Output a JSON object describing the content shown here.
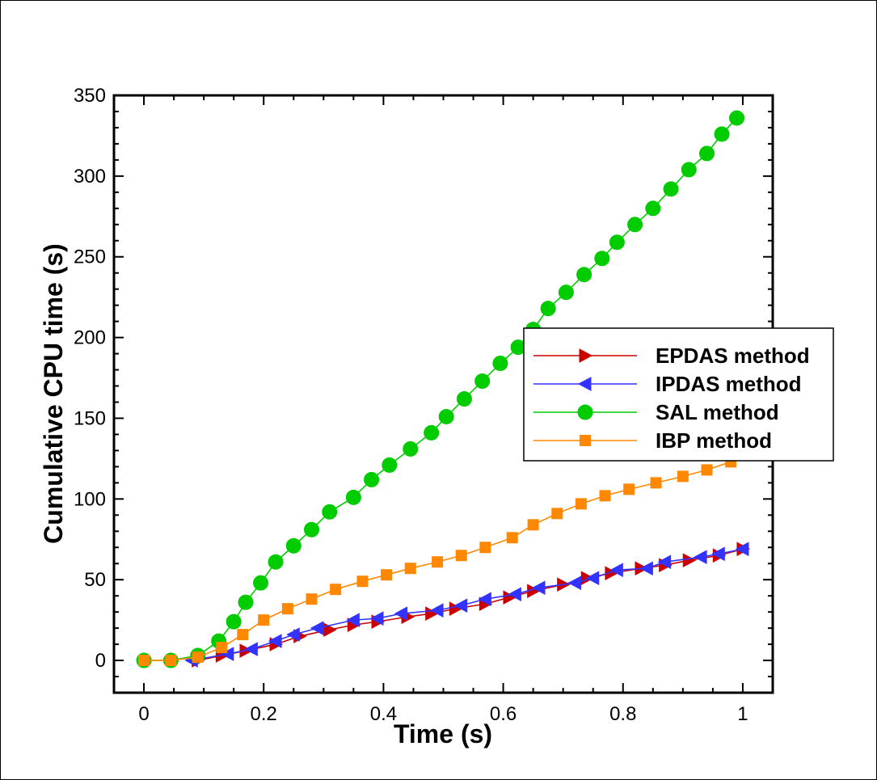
{
  "chart_data": {
    "type": "line",
    "title": "",
    "xlabel": "Time (s)",
    "ylabel": "Cumulative CPU time (s)",
    "xlim": [
      -0.05,
      1.05
    ],
    "ylim": [
      -20,
      350
    ],
    "x_ticks": [
      0,
      0.2,
      0.4,
      0.6,
      0.8,
      1
    ],
    "x_tick_labels": [
      "0",
      "0.2",
      "0.4",
      "0.6",
      "0.8",
      "1"
    ],
    "y_ticks": [
      0,
      50,
      100,
      150,
      200,
      250,
      300,
      350
    ],
    "y_tick_labels": [
      "0",
      "50",
      "100",
      "150",
      "200",
      "250",
      "300",
      "350"
    ],
    "grid": false,
    "legend_position": "right",
    "series": [
      {
        "name": "EPDAS method",
        "color": "#cc0000",
        "marker": "triangle-right",
        "x": [
          0.09,
          0.13,
          0.17,
          0.22,
          0.26,
          0.31,
          0.35,
          0.39,
          0.44,
          0.48,
          0.52,
          0.57,
          0.61,
          0.65,
          0.7,
          0.74,
          0.78,
          0.83,
          0.87,
          0.91,
          0.96,
          1.0
        ],
        "y": [
          0,
          3,
          6,
          10,
          15,
          19,
          22,
          24,
          27,
          29,
          32,
          35,
          39,
          43,
          47,
          51,
          54,
          57,
          59,
          62,
          65,
          69
        ]
      },
      {
        "name": "IPDAS method",
        "color": "#3333ff",
        "marker": "triangle-left",
        "x": [
          0.08,
          0.14,
          0.18,
          0.22,
          0.25,
          0.29,
          0.35,
          0.39,
          0.43,
          0.49,
          0.53,
          0.57,
          0.62,
          0.66,
          0.72,
          0.75,
          0.79,
          0.84,
          0.87,
          0.93,
          0.96,
          1.0
        ],
        "y": [
          0,
          4,
          7,
          12,
          16,
          20,
          25,
          26,
          29,
          31,
          34,
          38,
          41,
          45,
          48,
          51,
          56,
          57,
          61,
          64,
          66,
          69
        ]
      },
      {
        "name": "SAL method",
        "color": "#00cc00",
        "marker": "circle",
        "x": [
          0,
          0.045,
          0.09,
          0.125,
          0.15,
          0.17,
          0.195,
          0.22,
          0.25,
          0.28,
          0.31,
          0.35,
          0.38,
          0.41,
          0.445,
          0.48,
          0.505,
          0.535,
          0.565,
          0.595,
          0.625,
          0.65,
          0.675,
          0.705,
          0.735,
          0.765,
          0.79,
          0.82,
          0.85,
          0.88,
          0.91,
          0.94,
          0.965,
          0.99
        ],
        "y": [
          0,
          0,
          3,
          12,
          24,
          36,
          48,
          61,
          71,
          81,
          92,
          101,
          112,
          121,
          131,
          141,
          151,
          162,
          173,
          184,
          194,
          205,
          218,
          228,
          239,
          249,
          259,
          270,
          280,
          292,
          304,
          314,
          326,
          336
        ]
      },
      {
        "name": "IBP method",
        "color": "#ff8800",
        "marker": "square",
        "x": [
          0,
          0.045,
          0.09,
          0.13,
          0.165,
          0.2,
          0.24,
          0.28,
          0.32,
          0.365,
          0.405,
          0.445,
          0.49,
          0.53,
          0.57,
          0.615,
          0.65,
          0.69,
          0.73,
          0.77,
          0.81,
          0.855,
          0.9,
          0.94,
          0.98
        ],
        "y": [
          0,
          0,
          2,
          8,
          16,
          25,
          32,
          38,
          44,
          49,
          53,
          57,
          61,
          65,
          70,
          76,
          84,
          91,
          97,
          102,
          106,
          110,
          114,
          118,
          123
        ]
      }
    ]
  }
}
